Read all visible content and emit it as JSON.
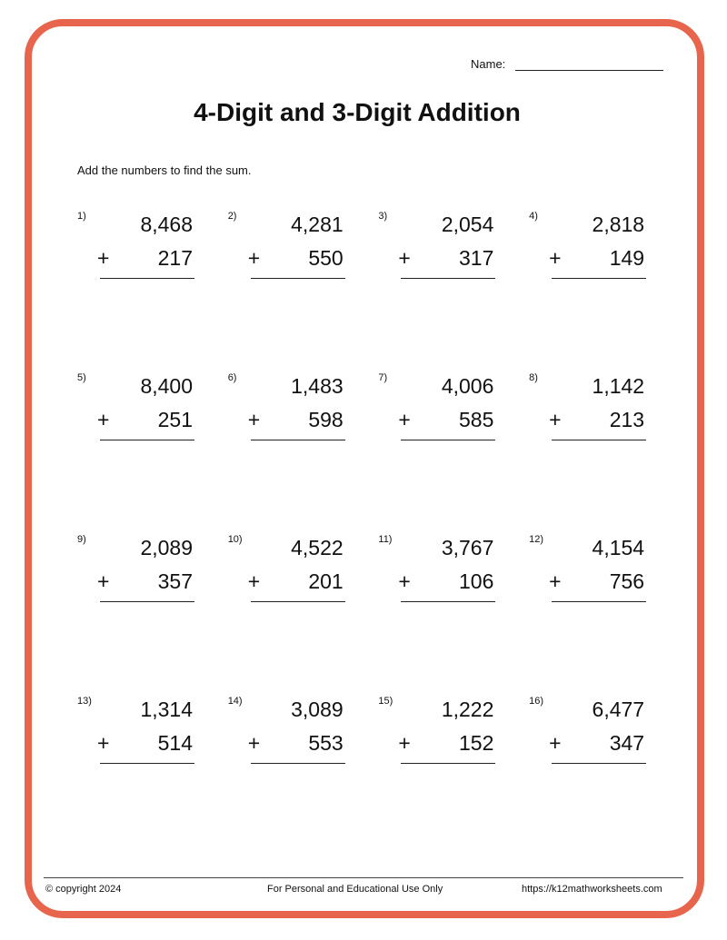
{
  "header": {
    "name_label": "Name:",
    "title": "4-Digit and 3-Digit Addition",
    "instructions": "Add the numbers to find the sum."
  },
  "problems": [
    {
      "n": "1)",
      "a": "8,468",
      "op": "+",
      "b": "217"
    },
    {
      "n": "2)",
      "a": "4,281",
      "op": "+",
      "b": "550"
    },
    {
      "n": "3)",
      "a": "2,054",
      "op": "+",
      "b": "317"
    },
    {
      "n": "4)",
      "a": "2,818",
      "op": "+",
      "b": "149"
    },
    {
      "n": "5)",
      "a": "8,400",
      "op": "+",
      "b": "251"
    },
    {
      "n": "6)",
      "a": "1,483",
      "op": "+",
      "b": "598"
    },
    {
      "n": "7)",
      "a": "4,006",
      "op": "+",
      "b": "585"
    },
    {
      "n": "8)",
      "a": "1,142",
      "op": "+",
      "b": "213"
    },
    {
      "n": "9)",
      "a": "2,089",
      "op": "+",
      "b": "357"
    },
    {
      "n": "10)",
      "a": "4,522",
      "op": "+",
      "b": "201"
    },
    {
      "n": "11)",
      "a": "3,767",
      "op": "+",
      "b": "106"
    },
    {
      "n": "12)",
      "a": "4,154",
      "op": "+",
      "b": "756"
    },
    {
      "n": "13)",
      "a": "1,314",
      "op": "+",
      "b": "514"
    },
    {
      "n": "14)",
      "a": "3,089",
      "op": "+",
      "b": "553"
    },
    {
      "n": "15)",
      "a": "1,222",
      "op": "+",
      "b": "152"
    },
    {
      "n": "16)",
      "a": "6,477",
      "op": "+",
      "b": "347"
    }
  ],
  "footer": {
    "copyright": "© copyright 2024",
    "notice": "For Personal and Educational Use Only",
    "url": "https://k12mathworksheets.com"
  },
  "colors": {
    "border": "#e8654d"
  }
}
